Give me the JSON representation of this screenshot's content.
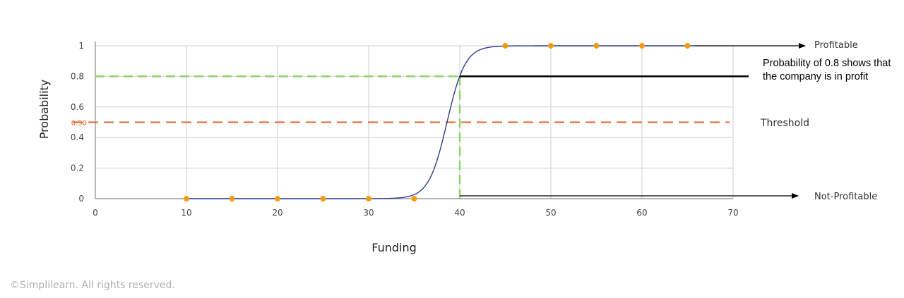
{
  "chart_data": {
    "type": "scatter",
    "xlabel": "Funding",
    "ylabel": "Probability",
    "xlim": [
      0,
      70
    ],
    "ylim": [
      0,
      1
    ],
    "x_ticks": [
      "0",
      "10",
      "20",
      "30",
      "40",
      "50",
      "60",
      "70"
    ],
    "y_ticks": [
      "0",
      "0.2",
      "0.4",
      "0.6",
      "0.8",
      "1"
    ],
    "grid": true,
    "series": [
      {
        "name": "",
        "kind": "points",
        "color": "#f39c12",
        "x": [
          10,
          15,
          20,
          25,
          30,
          35,
          45,
          50,
          55,
          60,
          65
        ],
        "y": [
          0,
          0,
          0,
          0,
          0,
          0,
          1,
          1,
          1,
          1,
          1
        ]
      },
      {
        "name": "",
        "kind": "logistic-curve",
        "color": "#2e3d8c",
        "midpoint": 38.6,
        "steepness": 1.0,
        "x_range": [
          10,
          66
        ]
      }
    ],
    "threshold": {
      "label": "0.50",
      "value": 0.5,
      "color": "#e0622a"
    },
    "reference": {
      "x": 40,
      "y": 0.8,
      "color": "#8fd16a"
    },
    "annotations": {
      "profitable": "Profitable",
      "not_profitable": "Not-Profitable",
      "threshold_label": "Threshold",
      "note": "Probability of 0.8  shows that the company is in profit"
    }
  },
  "footer": {
    "copyright": "©Simplilearn. All rights reserved."
  }
}
